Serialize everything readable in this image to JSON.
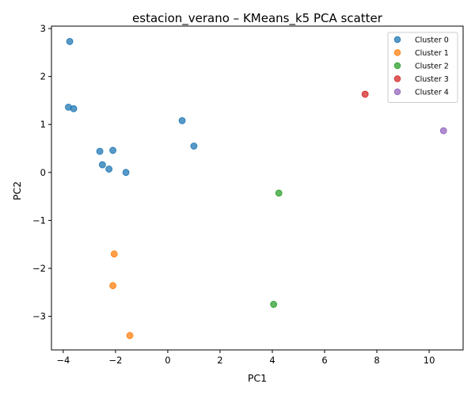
{
  "chart_data": {
    "type": "scatter",
    "title": "estacion_verano – KMeans_k5 PCA scatter",
    "xlabel": "PC1",
    "ylabel": "PC2",
    "xlim": [
      -4.45,
      11.3
    ],
    "ylim": [
      -3.7,
      3.05
    ],
    "x_ticks": [
      -4,
      -2,
      0,
      2,
      4,
      6,
      8,
      10
    ],
    "y_ticks": [
      -3,
      -2,
      -1,
      0,
      1,
      2,
      3
    ],
    "x_tick_labels": [
      "−4",
      "−2",
      "0",
      "2",
      "4",
      "6",
      "8",
      "10"
    ],
    "y_tick_labels": [
      "−3",
      "−2",
      "−1",
      "0",
      "1",
      "2",
      "3"
    ],
    "grid": false,
    "legend_position": "top-right",
    "series": [
      {
        "name": "Cluster 0",
        "color": "#1f77b4",
        "points": [
          {
            "x": -3.75,
            "y": 2.73
          },
          {
            "x": -3.8,
            "y": 1.36
          },
          {
            "x": -3.6,
            "y": 1.33
          },
          {
            "x": -2.6,
            "y": 0.44
          },
          {
            "x": -2.1,
            "y": 0.46
          },
          {
            "x": -2.5,
            "y": 0.16
          },
          {
            "x": -2.25,
            "y": 0.07
          },
          {
            "x": -1.6,
            "y": 0.0
          },
          {
            "x": 0.55,
            "y": 1.08
          },
          {
            "x": 1.0,
            "y": 0.55
          }
        ]
      },
      {
        "name": "Cluster 1",
        "color": "#ff7f0e",
        "points": [
          {
            "x": -2.05,
            "y": -1.7
          },
          {
            "x": -2.1,
            "y": -2.36
          },
          {
            "x": -1.45,
            "y": -3.4
          }
        ]
      },
      {
        "name": "Cluster 2",
        "color": "#2ca02c",
        "points": [
          {
            "x": 4.25,
            "y": -0.43
          },
          {
            "x": 4.05,
            "y": -2.75
          }
        ]
      },
      {
        "name": "Cluster 3",
        "color": "#d62728",
        "points": [
          {
            "x": 7.55,
            "y": 1.63
          }
        ]
      },
      {
        "name": "Cluster 4",
        "color": "#9467bd",
        "points": [
          {
            "x": 10.55,
            "y": 0.87
          }
        ]
      }
    ]
  }
}
